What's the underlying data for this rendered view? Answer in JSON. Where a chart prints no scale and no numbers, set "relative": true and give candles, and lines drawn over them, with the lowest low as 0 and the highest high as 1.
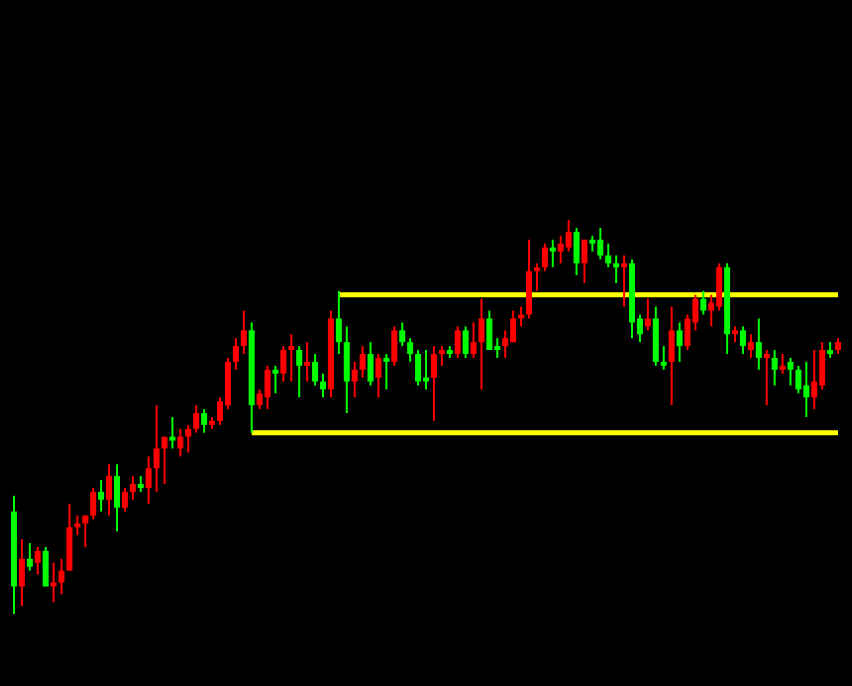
{
  "chart_data": {
    "type": "candlestick",
    "relative": true,
    "categories": [
      null,
      null,
      null,
      null,
      null,
      null,
      null,
      null,
      null,
      null,
      null,
      null,
      null,
      null,
      null,
      null,
      null,
      null,
      null,
      null,
      null,
      null,
      null,
      null,
      null,
      null,
      null,
      null,
      null,
      null,
      null,
      null,
      null,
      null,
      null,
      null,
      null,
      null,
      null,
      null,
      null,
      null,
      null,
      null,
      null,
      null,
      null,
      null,
      null,
      null,
      null,
      null,
      null,
      null,
      null,
      null,
      null,
      null,
      null,
      null,
      null,
      null,
      null,
      null,
      null,
      null,
      null,
      null,
      null,
      null,
      null,
      null,
      null,
      null,
      null,
      null,
      null,
      null,
      null,
      null,
      null,
      null,
      null,
      null,
      null,
      null,
      null,
      null,
      null,
      null,
      null,
      null,
      null,
      null,
      null,
      null,
      null,
      null,
      null,
      null,
      null,
      null,
      null,
      null,
      null
    ],
    "ohlc": [
      [
        0.26,
        0.3,
        0,
        0.07
      ],
      [
        0.07,
        0.19,
        0.02,
        0.14
      ],
      [
        0.14,
        0.18,
        0.11,
        0.12
      ],
      [
        0.13,
        0.17,
        0.1,
        0.16
      ],
      [
        0.16,
        0.17,
        0.07,
        0.07
      ],
      [
        0.07,
        0.13,
        0.03,
        0.08
      ],
      [
        0.08,
        0.14,
        0.05,
        0.11
      ],
      [
        0.11,
        0.28,
        0.11,
        0.22
      ],
      [
        0.22,
        0.25,
        0.2,
        0.23
      ],
      [
        0.23,
        0.25,
        0.17,
        0.25
      ],
      [
        0.25,
        0.32,
        0.24,
        0.31
      ],
      [
        0.31,
        0.34,
        0.26,
        0.29
      ],
      [
        0.29,
        0.38,
        0.25,
        0.35
      ],
      [
        0.35,
        0.38,
        0.21,
        0.27
      ],
      [
        0.27,
        0.32,
        0.26,
        0.31
      ],
      [
        0.31,
        0.35,
        0.29,
        0.33
      ],
      [
        0.33,
        0.35,
        0.31,
        0.32
      ],
      [
        0.32,
        0.4,
        0.28,
        0.37
      ],
      [
        0.37,
        0.53,
        0.31,
        0.42
      ],
      [
        0.42,
        0.45,
        0.33,
        0.45
      ],
      [
        0.45,
        0.5,
        0.42,
        0.44
      ],
      [
        0.42,
        0.47,
        0.4,
        0.45
      ],
      [
        0.45,
        0.48,
        0.41,
        0.47
      ],
      [
        0.47,
        0.53,
        0.46,
        0.51
      ],
      [
        0.51,
        0.52,
        0.46,
        0.48
      ],
      [
        0.48,
        0.5,
        0.47,
        0.49
      ],
      [
        0.49,
        0.55,
        0.48,
        0.54
      ],
      [
        0.53,
        0.65,
        0.52,
        0.64
      ],
      [
        0.64,
        0.7,
        0.62,
        0.68
      ],
      [
        0.68,
        0.77,
        0.66,
        0.72
      ],
      [
        0.72,
        0.74,
        0.46,
        0.53
      ],
      [
        0.53,
        0.57,
        0.52,
        0.56
      ],
      [
        0.55,
        0.63,
        0.52,
        0.62
      ],
      [
        0.62,
        0.63,
        0.56,
        0.61
      ],
      [
        0.61,
        0.68,
        0.59,
        0.67
      ],
      [
        0.67,
        0.71,
        0.59,
        0.68
      ],
      [
        0.67,
        0.68,
        0.55,
        0.63
      ],
      [
        0.63,
        0.69,
        0.59,
        0.64
      ],
      [
        0.64,
        0.66,
        0.58,
        0.59
      ],
      [
        0.59,
        0.61,
        0.55,
        0.57
      ],
      [
        0.57,
        0.77,
        0.55,
        0.75
      ],
      [
        0.75,
        0.82,
        0.66,
        0.69
      ],
      [
        0.69,
        0.73,
        0.51,
        0.59
      ],
      [
        0.59,
        0.64,
        0.55,
        0.62
      ],
      [
        0.62,
        0.68,
        0.6,
        0.66
      ],
      [
        0.66,
        0.69,
        0.58,
        0.59
      ],
      [
        0.6,
        0.66,
        0.55,
        0.65
      ],
      [
        0.65,
        0.66,
        0.57,
        0.64
      ],
      [
        0.64,
        0.73,
        0.63,
        0.72
      ],
      [
        0.72,
        0.74,
        0.68,
        0.69
      ],
      [
        0.69,
        0.7,
        0.64,
        0.66
      ],
      [
        0.66,
        0.67,
        0.58,
        0.59
      ],
      [
        0.6,
        0.67,
        0.57,
        0.59
      ],
      [
        0.6,
        0.68,
        0.49,
        0.66
      ],
      [
        0.66,
        0.68,
        0.63,
        0.67
      ],
      [
        0.67,
        0.68,
        0.65,
        0.66
      ],
      [
        0.66,
        0.73,
        0.65,
        0.72
      ],
      [
        0.72,
        0.73,
        0.65,
        0.66
      ],
      [
        0.66,
        0.74,
        0.65,
        0.69
      ],
      [
        0.69,
        0.8,
        0.57,
        0.75
      ],
      [
        0.75,
        0.77,
        0.67,
        0.67
      ],
      [
        0.68,
        0.7,
        0.65,
        0.67
      ],
      [
        0.68,
        0.72,
        0.65,
        0.7
      ],
      [
        0.69,
        0.77,
        0.69,
        0.75
      ],
      [
        0.75,
        0.78,
        0.73,
        0.76
      ],
      [
        0.76,
        0.95,
        0.75,
        0.87
      ],
      [
        0.87,
        0.89,
        0.82,
        0.88
      ],
      [
        0.88,
        0.94,
        0.87,
        0.93
      ],
      [
        0.93,
        0.95,
        0.88,
        0.92
      ],
      [
        0.92,
        0.96,
        0.89,
        0.94
      ],
      [
        0.93,
        1,
        0.92,
        0.97
      ],
      [
        0.97,
        0.98,
        0.86,
        0.89
      ],
      [
        0.89,
        0.95,
        0.84,
        0.95
      ],
      [
        0.95,
        0.96,
        0.92,
        0.94
      ],
      [
        0.95,
        0.98,
        0.9,
        0.91
      ],
      [
        0.91,
        0.94,
        0.88,
        0.89
      ],
      [
        0.89,
        0.91,
        0.84,
        0.88
      ],
      [
        0.88,
        0.91,
        0.78,
        0.89
      ],
      [
        0.89,
        0.9,
        0.7,
        0.74
      ],
      [
        0.75,
        0.76,
        0.69,
        0.71
      ],
      [
        0.73,
        0.8,
        0.72,
        0.75
      ],
      [
        0.75,
        0.78,
        0.63,
        0.64
      ],
      [
        0.64,
        0.68,
        0.62,
        0.63
      ],
      [
        0.64,
        0.78,
        0.53,
        0.72
      ],
      [
        0.72,
        0.74,
        0.64,
        0.68
      ],
      [
        0.68,
        0.76,
        0.67,
        0.75
      ],
      [
        0.74,
        0.81,
        0.72,
        0.8
      ],
      [
        0.8,
        0.82,
        0.76,
        0.77
      ],
      [
        0.77,
        0.81,
        0.73,
        0.79
      ],
      [
        0.78,
        0.89,
        0.77,
        0.88
      ],
      [
        0.88,
        0.89,
        0.66,
        0.71
      ],
      [
        0.71,
        0.73,
        0.69,
        0.72
      ],
      [
        0.72,
        0.73,
        0.66,
        0.68
      ],
      [
        0.67,
        0.71,
        0.65,
        0.69
      ],
      [
        0.69,
        0.75,
        0.62,
        0.65
      ],
      [
        0.65,
        0.67,
        0.53,
        0.66
      ],
      [
        0.65,
        0.67,
        0.58,
        0.62
      ],
      [
        0.62,
        0.66,
        0.61,
        0.63
      ],
      [
        0.64,
        0.65,
        0.58,
        0.62
      ],
      [
        0.62,
        0.63,
        0.56,
        0.57
      ],
      [
        0.58,
        0.64,
        0.5,
        0.55
      ],
      [
        0.55,
        0.67,
        0.52,
        0.59
      ],
      [
        0.58,
        0.69,
        0.57,
        0.67
      ],
      [
        0.67,
        0.69,
        0.65,
        0.66
      ],
      [
        0.67,
        0.7,
        0.66,
        0.69
      ]
    ],
    "colors": [
      "#00ff00",
      "#ff0000",
      "#00ff00",
      "#ff0000",
      "#00ff00",
      "#ff0000",
      "#ff0000",
      "#ff0000",
      "#ff0000",
      "#ff0000",
      "#ff0000",
      "#00ff00",
      "#ff0000",
      "#00ff00",
      "#ff0000",
      "#ff0000",
      "#00ff00",
      "#ff0000",
      "#ff0000",
      "#ff0000",
      "#00ff00",
      "#ff0000",
      "#ff0000",
      "#ff0000",
      "#00ff00",
      "#ff0000",
      "#ff0000",
      "#ff0000",
      "#ff0000",
      "#ff0000",
      "#00ff00",
      "#ff0000",
      "#ff0000",
      "#00ff00",
      "#ff0000",
      "#ff0000",
      "#00ff00",
      "#ff0000",
      "#00ff00",
      "#00ff00",
      "#ff0000",
      "#00ff00",
      "#00ff00",
      "#ff0000",
      "#ff0000",
      "#00ff00",
      "#ff0000",
      "#00ff00",
      "#ff0000",
      "#00ff00",
      "#00ff00",
      "#00ff00",
      "#00ff00",
      "#ff0000",
      "#ff0000",
      "#00ff00",
      "#ff0000",
      "#00ff00",
      "#ff0000",
      "#ff0000",
      "#00ff00",
      "#00ff00",
      "#ff0000",
      "#ff0000",
      "#ff0000",
      "#ff0000",
      "#ff0000",
      "#ff0000",
      "#00ff00",
      "#ff0000",
      "#ff0000",
      "#00ff00",
      "#ff0000",
      "#00ff00",
      "#00ff00",
      "#00ff00",
      "#00ff00",
      "#ff0000",
      "#00ff00",
      "#00ff00",
      "#ff0000",
      "#00ff00",
      "#00ff00",
      "#ff0000",
      "#00ff00",
      "#ff0000",
      "#ff0000",
      "#00ff00",
      "#ff0000",
      "#ff0000",
      "#00ff00",
      "#ff0000",
      "#00ff00",
      "#ff0000",
      "#00ff00",
      "#ff0000",
      "#00ff00",
      "#ff0000",
      "#00ff00",
      "#00ff00",
      "#00ff00",
      "#ff0000",
      "#ff0000",
      "#00ff00",
      "#ff0000"
    ],
    "series": [
      {
        "type": "line",
        "color": "#ffff00",
        "values": [
          null,
          null,
          null,
          null,
          null,
          null,
          null,
          null,
          null,
          null,
          null,
          null,
          null,
          null,
          null,
          null,
          null,
          null,
          null,
          null,
          null,
          null,
          null,
          null,
          null,
          null,
          null,
          null,
          null,
          null,
          0.46,
          0.46,
          0.46,
          0.46,
          0.46,
          0.46,
          0.46,
          0.46,
          0.46,
          0.46,
          0.46,
          0.46,
          0.46,
          0.46,
          0.46,
          0.46,
          0.46,
          0.46,
          0.46,
          0.46,
          0.46,
          0.46,
          0.46,
          0.46,
          0.46,
          0.46,
          0.46,
          0.46,
          0.46,
          0.46,
          0.46,
          0.46,
          0.46,
          0.46,
          0.46,
          0.46,
          0.46,
          0.46,
          0.46,
          0.46,
          0.46,
          0.46,
          0.46,
          0.46,
          0.46,
          0.46,
          0.46,
          0.46,
          0.46,
          0.46,
          0.46,
          0.46,
          0.46,
          0.46,
          0.46,
          0.46,
          0.46,
          0.46,
          0.46,
          0.46,
          0.46,
          0.46,
          0.46,
          0.46,
          0.46,
          0.46,
          0.46,
          0.46,
          0.46,
          0.46,
          0.46,
          0.46,
          0.46,
          0.46,
          0.46
        ]
      },
      {
        "type": "line",
        "color": "#ffff00",
        "values": [
          null,
          null,
          null,
          null,
          null,
          null,
          null,
          null,
          null,
          null,
          null,
          null,
          null,
          null,
          null,
          null,
          null,
          null,
          null,
          null,
          null,
          null,
          null,
          null,
          null,
          null,
          null,
          null,
          null,
          null,
          null,
          null,
          null,
          null,
          null,
          null,
          null,
          null,
          null,
          null,
          null,
          0.81,
          0.81,
          0.81,
          0.81,
          0.81,
          0.81,
          0.81,
          0.81,
          0.81,
          0.81,
          0.81,
          0.81,
          0.81,
          0.81,
          0.81,
          0.81,
          0.81,
          0.81,
          0.81,
          0.81,
          0.81,
          0.81,
          0.81,
          0.81,
          0.81,
          0.81,
          0.81,
          0.81,
          0.81,
          0.81,
          0.81,
          0.81,
          0.81,
          0.81,
          0.81,
          0.81,
          0.81,
          0.81,
          0.81,
          0.81,
          0.81,
          0.81,
          0.81,
          0.81,
          0.81,
          0.81,
          0.81,
          0.81,
          0.81,
          0.81,
          0.81,
          0.81,
          0.81,
          0.81,
          0.81,
          0.81,
          0.81,
          0.81,
          0.81,
          0.81,
          0.81,
          0.81,
          0.81,
          0.81
        ]
      }
    ]
  }
}
